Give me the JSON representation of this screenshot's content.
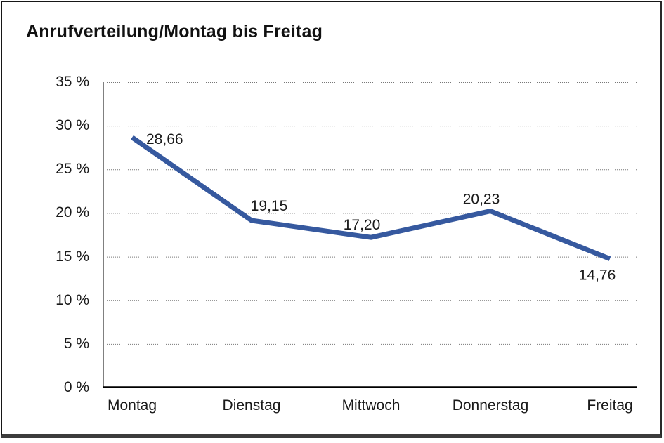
{
  "window": {
    "title": "Anrufverteilung/Montag bis Freitag"
  },
  "chart_data": {
    "type": "line",
    "title": "Anrufverteilung/Montag bis Freitag",
    "categories": [
      "Montag",
      "Dienstag",
      "Mittwoch",
      "Donnerstag",
      "Freitag"
    ],
    "series": [
      {
        "name": "Anrufverteilung",
        "values": [
          28.66,
          19.15,
          17.2,
          20.23,
          14.76
        ]
      }
    ],
    "value_labels": [
      "28,66",
      "19,15",
      "17,20",
      "20,23",
      "14,76"
    ],
    "xlabel": "",
    "ylabel": "",
    "ylim": [
      0,
      35
    ],
    "ytick_step": 5,
    "ytick_labels_top_down": [
      "35 %",
      "30 %",
      "25 %",
      "20 %",
      "15 %",
      "10 %",
      "5 %",
      "0 %"
    ],
    "grid": "horizontal-dotted",
    "legend": "none",
    "colors": {
      "line": "#36599F",
      "axis": "#000000",
      "gridline": "#777777",
      "text": "#1a1a1a"
    }
  }
}
